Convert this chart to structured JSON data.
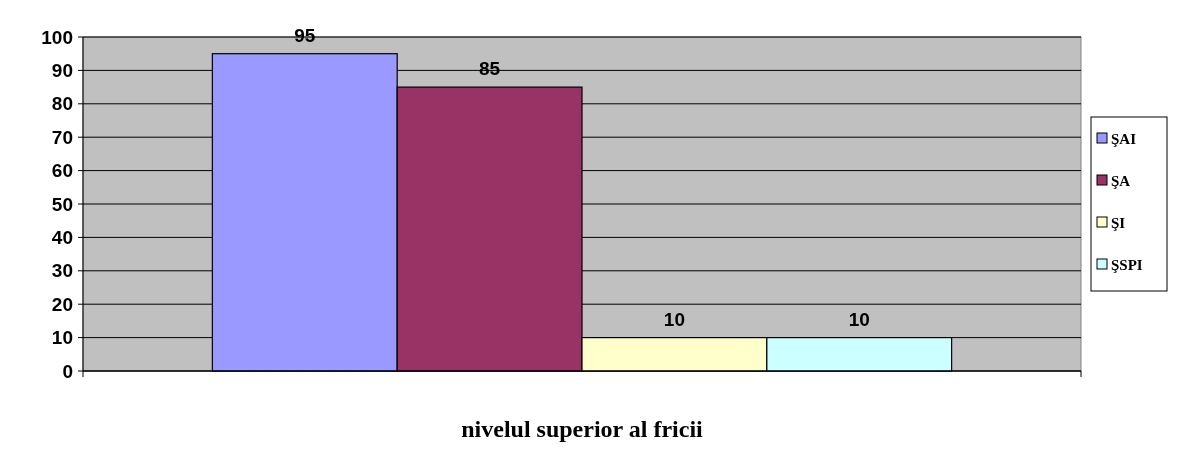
{
  "chart_data": {
    "type": "bar",
    "xlabel": "nivelul superior al fricii",
    "categories": [
      null
    ],
    "series": [
      {
        "name": "ŞAI",
        "color": "#9999ff",
        "values": [
          95
        ]
      },
      {
        "name": "ŞA",
        "color": "#993366",
        "values": [
          85
        ]
      },
      {
        "name": "ŞI",
        "color": "#ffffcc",
        "values": [
          10
        ]
      },
      {
        "name": "ŞSPI",
        "color": "#ccffff",
        "values": [
          10
        ]
      }
    ],
    "ylim": [
      0,
      100
    ],
    "yticks": [
      0,
      10,
      20,
      30,
      40,
      50,
      60,
      70,
      80,
      90,
      100
    ],
    "grid": "y",
    "legend": "right",
    "data_labels": true
  }
}
